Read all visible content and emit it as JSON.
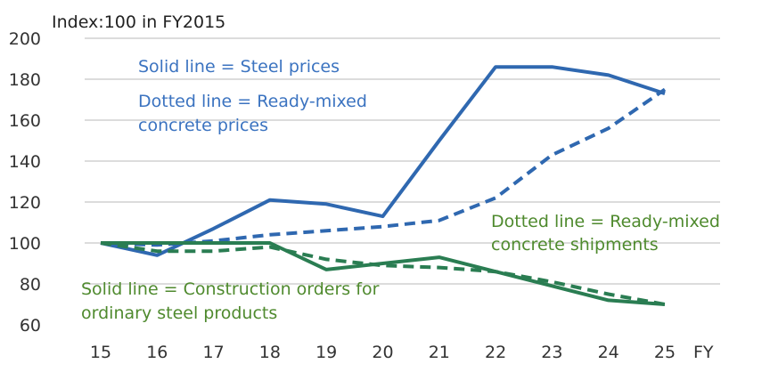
{
  "chart_data": {
    "type": "line",
    "title": "Index:100 in FY2015",
    "xlabel": "FY",
    "ylabel": "",
    "categories": [
      "15",
      "16",
      "17",
      "18",
      "19",
      "20",
      "21",
      "22",
      "23",
      "24",
      "25"
    ],
    "ylim": [
      60,
      200
    ],
    "yticks": [
      "60",
      "80",
      "100",
      "120",
      "140",
      "160",
      "180",
      "200"
    ],
    "grid": true,
    "series": [
      {
        "name": "Steel prices",
        "style": "solid",
        "color": "#2f68b0",
        "values": [
          100,
          94,
          107,
          121,
          119,
          113,
          150,
          186,
          186,
          182,
          173
        ]
      },
      {
        "name": "Ready-mixed concrete prices",
        "style": "dotted",
        "color": "#2f68b0",
        "values": [
          100,
          99,
          101,
          104,
          106,
          108,
          111,
          122,
          143,
          156,
          175
        ]
      },
      {
        "name": "Construction orders for ordinary steel products",
        "style": "solid",
        "color": "#2a7d52",
        "values": [
          100,
          100,
          100,
          100,
          87,
          90,
          93,
          86,
          79,
          72,
          70
        ]
      },
      {
        "name": "Ready-mixed concrete shipments",
        "style": "dotted",
        "color": "#2a7d52",
        "values": [
          100,
          96,
          96,
          98,
          92,
          89,
          88,
          86,
          81,
          75,
          70
        ]
      }
    ],
    "annotations": {
      "steel": "Solid line = Steel prices",
      "concrete_prices_1": "Dotted line = Ready-mixed",
      "concrete_prices_2": "concrete prices",
      "shipments_1": "Dotted line = Ready-mixed",
      "shipments_2": "concrete shipments",
      "orders_1": "Solid line = Construction orders for",
      "orders_2": "ordinary steel products"
    }
  }
}
